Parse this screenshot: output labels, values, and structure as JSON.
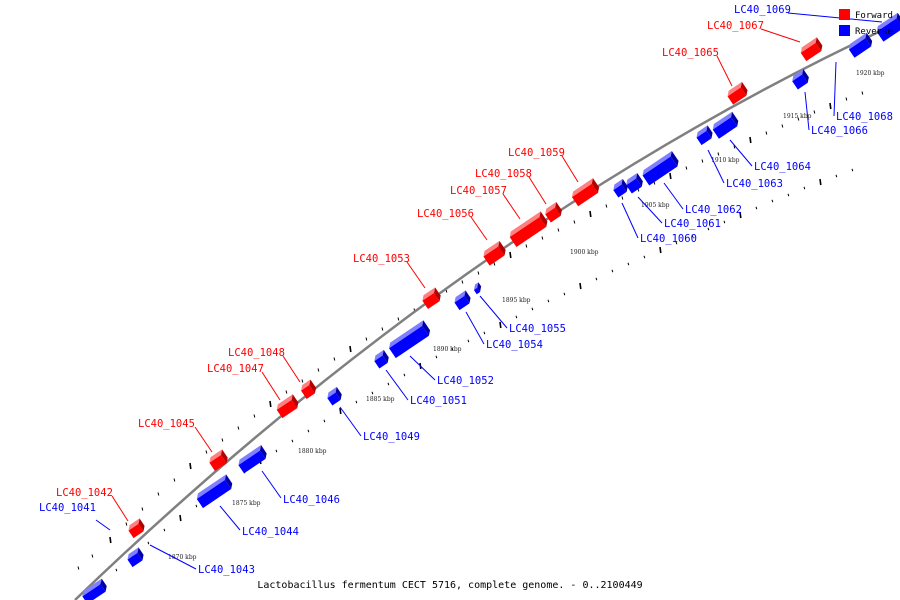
{
  "caption": "Lactobacillus fermentum CECT 5716, complete genome. - 0..2100449",
  "legend": [
    {
      "label": "Forward",
      "color": "#ff0000"
    },
    {
      "label": "Reverse",
      "color": "#0000ff"
    }
  ],
  "colors": {
    "forward": "#ff0000",
    "forward_dark": "#b30000",
    "forward_light": "#ff8080",
    "reverse": "#0000ff",
    "reverse_dark": "#0000a6",
    "reverse_light": "#8080ff",
    "backbone": "#808080"
  },
  "kbp_labels": [
    "1870 kbp",
    "1875 kbp",
    "1880 kbp",
    "1885 kbp",
    "1890 kbp",
    "1895 kbp",
    "1900 kbp",
    "1905 kbp",
    "1910 kbp",
    "1915 kbp",
    "1920 kbp"
  ],
  "genes": [
    {
      "id": "LC40_1041",
      "strand": "reverse"
    },
    {
      "id": "LC40_1042",
      "strand": "forward"
    },
    {
      "id": "LC40_1043",
      "strand": "reverse"
    },
    {
      "id": "LC40_1044",
      "strand": "reverse"
    },
    {
      "id": "LC40_1045",
      "strand": "forward"
    },
    {
      "id": "LC40_1046",
      "strand": "reverse"
    },
    {
      "id": "LC40_1047",
      "strand": "forward"
    },
    {
      "id": "LC40_1048",
      "strand": "forward"
    },
    {
      "id": "LC40_1049",
      "strand": "reverse"
    },
    {
      "id": "LC40_1051",
      "strand": "reverse"
    },
    {
      "id": "LC40_1052",
      "strand": "reverse"
    },
    {
      "id": "LC40_1053",
      "strand": "forward"
    },
    {
      "id": "LC40_1054",
      "strand": "reverse"
    },
    {
      "id": "LC40_1055",
      "strand": "reverse"
    },
    {
      "id": "LC40_1056",
      "strand": "forward"
    },
    {
      "id": "LC40_1057",
      "strand": "forward"
    },
    {
      "id": "LC40_1058",
      "strand": "forward"
    },
    {
      "id": "LC40_1059",
      "strand": "forward"
    },
    {
      "id": "LC40_1060",
      "strand": "reverse"
    },
    {
      "id": "LC40_1061",
      "strand": "reverse"
    },
    {
      "id": "LC40_1062",
      "strand": "reverse"
    },
    {
      "id": "LC40_1063",
      "strand": "reverse"
    },
    {
      "id": "LC40_1064",
      "strand": "reverse"
    },
    {
      "id": "LC40_1065",
      "strand": "forward"
    },
    {
      "id": "LC40_1066",
      "strand": "reverse"
    },
    {
      "id": "LC40_1067",
      "strand": "forward"
    },
    {
      "id": "LC40_1068",
      "strand": "reverse"
    },
    {
      "id": "LC40_1069",
      "strand": "reverse"
    }
  ]
}
